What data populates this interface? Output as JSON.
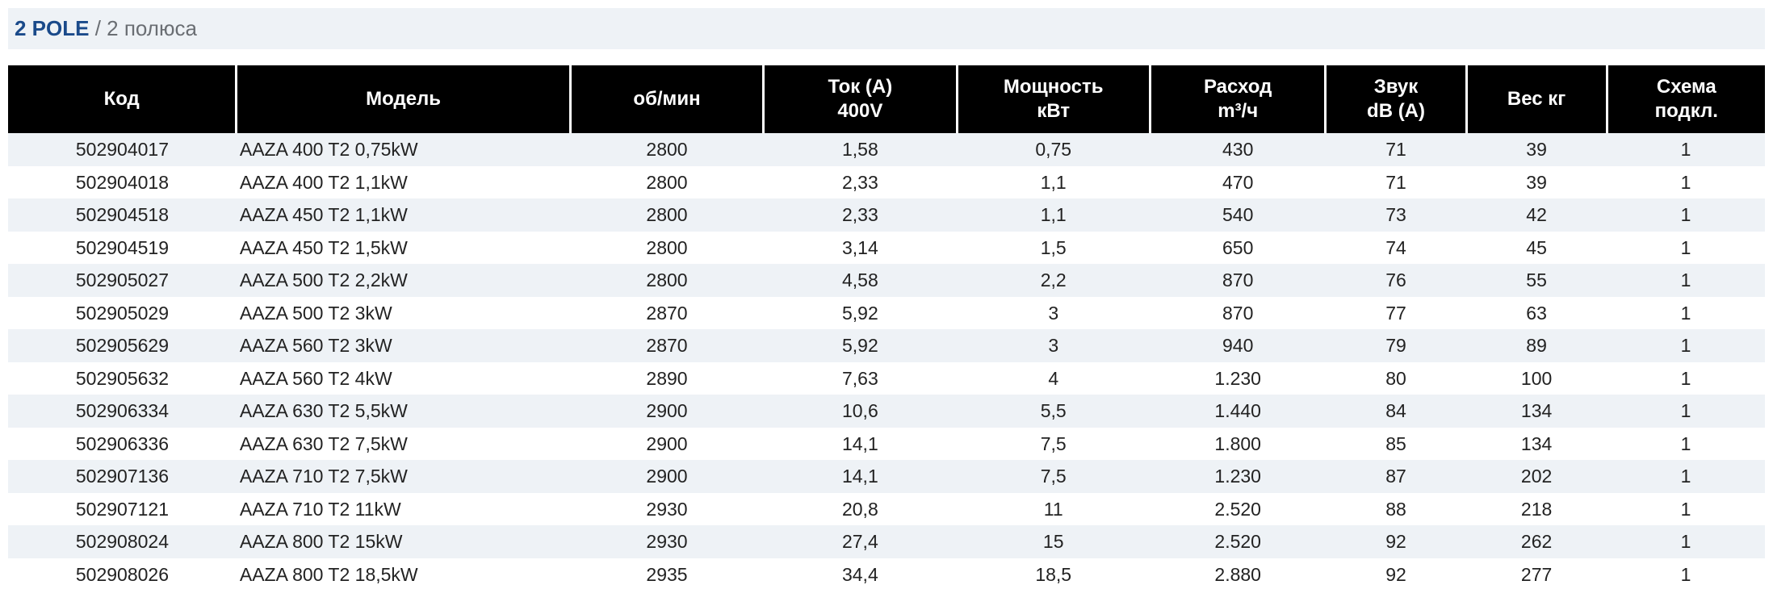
{
  "title": {
    "bold": "2 POLE",
    "sep": " / ",
    "light": "2 полюса"
  },
  "table": {
    "headers": [
      "Код",
      "Модель",
      "об/мин",
      "Ток (A)\n400V",
      "Мощность\nкВт",
      "Расход\nm³/ч",
      "Звук\ndB (A)",
      "Вес кг",
      "Схема\nподкл."
    ],
    "header_bg": "#000000",
    "header_fg": "#ffffff",
    "row_alt_bg": "#eef2f6",
    "row_bg": "#ffffff",
    "col_align": [
      "center",
      "left",
      "center",
      "center",
      "center",
      "center",
      "center",
      "center",
      "center"
    ],
    "rows": [
      [
        "502904017",
        "AAZA 400 T2 0,75kW",
        "2800",
        "1,58",
        "0,75",
        "430",
        "71",
        "39",
        "1"
      ],
      [
        "502904018",
        "AAZA 400 T2 1,1kW",
        "2800",
        "2,33",
        "1,1",
        "470",
        "71",
        "39",
        "1"
      ],
      [
        "502904518",
        "AAZA 450 T2 1,1kW",
        "2800",
        "2,33",
        "1,1",
        "540",
        "73",
        "42",
        "1"
      ],
      [
        "502904519",
        "AAZA 450 T2 1,5kW",
        "2800",
        "3,14",
        "1,5",
        "650",
        "74",
        "45",
        "1"
      ],
      [
        "502905027",
        "AAZA 500 T2 2,2kW",
        "2800",
        "4,58",
        "2,2",
        "870",
        "76",
        "55",
        "1"
      ],
      [
        "502905029",
        "AAZA 500 T2 3kW",
        "2870",
        "5,92",
        "3",
        "870",
        "77",
        "63",
        "1"
      ],
      [
        "502905629",
        "AAZA 560 T2 3kW",
        "2870",
        "5,92",
        "3",
        "940",
        "79",
        "89",
        "1"
      ],
      [
        "502905632",
        "AAZA 560 T2 4kW",
        "2890",
        "7,63",
        "4",
        "1.230",
        "80",
        "100",
        "1"
      ],
      [
        "502906334",
        "AAZA 630 T2 5,5kW",
        "2900",
        "10,6",
        "5,5",
        "1.440",
        "84",
        "134",
        "1"
      ],
      [
        "502906336",
        "AAZA 630 T2 7,5kW",
        "2900",
        "14,1",
        "7,5",
        "1.800",
        "85",
        "134",
        "1"
      ],
      [
        "502907136",
        "AAZA 710 T2 7,5kW",
        "2900",
        "14,1",
        "7,5",
        "1.230",
        "87",
        "202",
        "1"
      ],
      [
        "502907121",
        "AAZA 710 T2 11kW",
        "2930",
        "20,8",
        "11",
        "2.520",
        "88",
        "218",
        "1"
      ],
      [
        "502908024",
        "AAZA 800 T2 15kW",
        "2930",
        "27,4",
        "15",
        "2.520",
        "92",
        "262",
        "1"
      ],
      [
        "502908026",
        "AAZA 800 T2 18,5kW",
        "2935",
        "34,4",
        "18,5",
        "2.880",
        "92",
        "277",
        "1"
      ]
    ]
  }
}
